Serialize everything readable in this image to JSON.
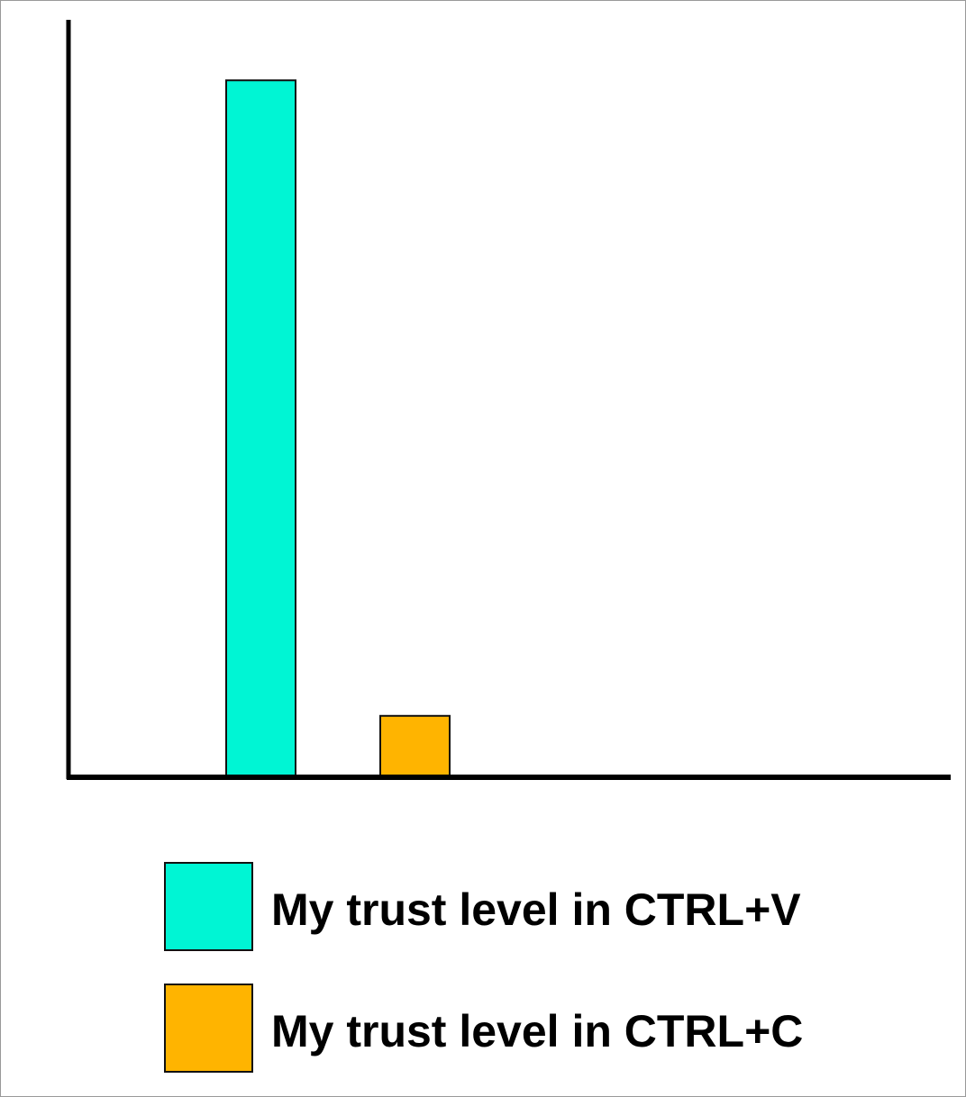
{
  "chart_data": {
    "type": "bar",
    "categories": [
      null
    ],
    "series": [
      {
        "name": "My trust level in CTRL+V",
        "color": "#00f5d4",
        "values": [
          92
        ]
      },
      {
        "name": "My trust level in CTRL+C",
        "color": "#ffb400",
        "values": [
          8
        ]
      }
    ],
    "ylim": [
      0,
      100
    ]
  }
}
